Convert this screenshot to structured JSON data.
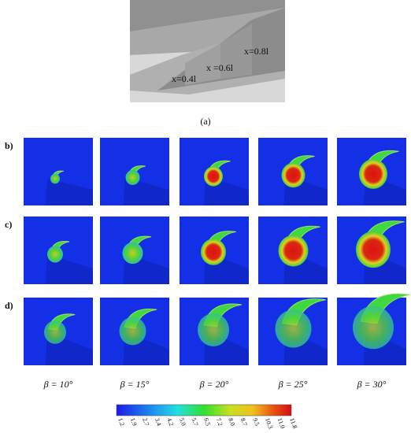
{
  "figure_a": {
    "labels": [
      "x=0.4l",
      "x =0.6l",
      "x=0.8l"
    ],
    "caption": "(a)"
  },
  "rows": [
    "b)",
    "c)",
    "d)"
  ],
  "columns": [
    "β = 10°",
    "β = 15°",
    "β = 20°",
    "β = 25°",
    "β = 30°"
  ],
  "colorbar": {
    "ticks": [
      "1.2",
      "1.9",
      "2.7",
      "3.4",
      "4.2",
      "5.0",
      "5.7",
      "6.5",
      "7.2",
      "8.0",
      "8.7",
      "9.5",
      "10.3",
      "11.0",
      "11.8"
    ]
  }
}
